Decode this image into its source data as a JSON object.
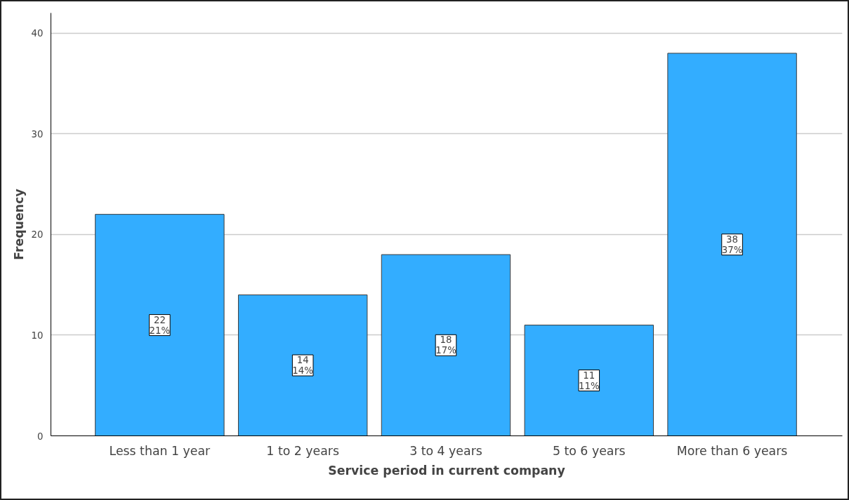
{
  "chart_data": {
    "type": "bar",
    "xlabel": "Service period in current company",
    "ylabel": "Frequency",
    "categories": [
      "Less than 1 year",
      "1 to 2 years",
      "3 to 4 years",
      "5 to 6 years",
      "More than 6 years"
    ],
    "values": [
      22,
      14,
      18,
      11,
      38
    ],
    "value_labels": [
      "22\n21%",
      "14\n14%",
      "18\n17%",
      "11\n11%",
      "38\n37%"
    ],
    "color": "#33adff",
    "ylim": [
      0,
      42
    ],
    "yticks": [
      0,
      10,
      20,
      30,
      40
    ],
    "grid": "y"
  }
}
